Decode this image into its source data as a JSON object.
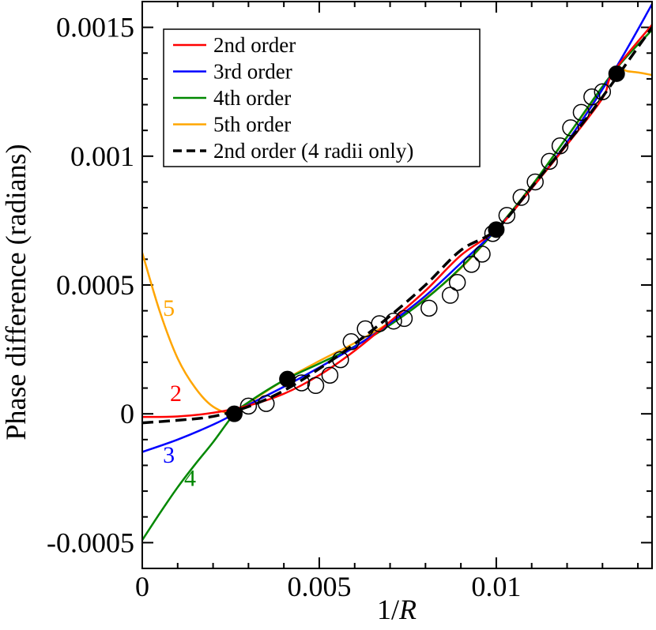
{
  "chart_data": {
    "type": "line",
    "xlabel_plain": "1/",
    "xlabel_italic": "R",
    "ylabel": "Phase difference (radians)",
    "xlim": [
      0,
      0.0144
    ],
    "ylim": [
      -0.0006,
      0.0016
    ],
    "x_ticks": [
      {
        "value": 0,
        "label": "0"
      },
      {
        "value": 0.005,
        "label": "0.005"
      },
      {
        "value": 0.01,
        "label": "0.01"
      }
    ],
    "y_ticks": [
      {
        "value": -0.0005,
        "label": "-0.0005"
      },
      {
        "value": 0,
        "label": "0"
      },
      {
        "value": 0.0005,
        "label": "0.0005"
      },
      {
        "value": 0.001,
        "label": "0.001"
      },
      {
        "value": 0.0015,
        "label": "0.0015"
      }
    ],
    "x_minor_step": 0.001,
    "y_minor_step": 0.0001,
    "grid": false,
    "legend_position": "top-left",
    "series": [
      {
        "name": "2nd order",
        "color": "#ff0000",
        "dash": false,
        "label": "2",
        "label_at": [
          0.00095,
          5e-05
        ],
        "points": [
          [
            0,
            -1.2e-05
          ],
          [
            0.001,
            -1e-05
          ],
          [
            0.002,
            4e-06
          ],
          [
            0.003,
            3.2e-05
          ],
          [
            0.004,
            7.8e-05
          ],
          [
            0.005,
            0.00015
          ],
          [
            0.006,
            0.000245
          ],
          [
            0.007,
            0.000358
          ],
          [
            0.008,
            0.000478
          ],
          [
            0.009,
            0.000615
          ],
          [
            0.01,
            0.000715
          ],
          [
            0.011,
            0.000875
          ],
          [
            0.012,
            0.001045
          ],
          [
            0.013,
            0.001225
          ],
          [
            0.0133,
            0.001325
          ],
          [
            0.0144,
            0.00151
          ]
        ]
      },
      {
        "name": "3rd order",
        "color": "#0000ff",
        "dash": false,
        "label": "3",
        "label_at": [
          0.00075,
          -0.00019
        ],
        "points": [
          [
            0,
            -0.000148
          ],
          [
            0.001,
            -0.0001
          ],
          [
            0.002,
            -4.2e-05
          ],
          [
            0.0026,
            0
          ],
          [
            0.003,
            3.5e-05
          ],
          [
            0.004,
            0.000105
          ],
          [
            0.005,
            0.00018
          ],
          [
            0.006,
            0.00026
          ],
          [
            0.007,
            0.000352
          ],
          [
            0.008,
            0.000458
          ],
          [
            0.009,
            0.000585
          ],
          [
            0.01,
            0.000715
          ],
          [
            0.011,
            0.000875
          ],
          [
            0.012,
            0.001055
          ],
          [
            0.0133,
            0.001325
          ],
          [
            0.0144,
            0.00159
          ]
        ]
      },
      {
        "name": "4th order",
        "color": "#008800",
        "dash": false,
        "label": "4",
        "label_at": [
          0.00135,
          -0.00028
        ],
        "points": [
          [
            0,
            -0.00049
          ],
          [
            0.0005,
            -0.000385
          ],
          [
            0.001,
            -0.000285
          ],
          [
            0.0015,
            -0.000195
          ],
          [
            0.002,
            -0.00011
          ],
          [
            0.0026,
            0
          ],
          [
            0.003,
            4.5e-05
          ],
          [
            0.004,
            0.00013
          ],
          [
            0.005,
            0.000195
          ],
          [
            0.006,
            0.000262
          ],
          [
            0.007,
            0.000345
          ],
          [
            0.008,
            0.000445
          ],
          [
            0.009,
            0.000568
          ],
          [
            0.01,
            0.000715
          ],
          [
            0.011,
            0.000885
          ],
          [
            0.012,
            0.001075
          ],
          [
            0.0133,
            0.001325
          ],
          [
            0.0144,
            0.00149
          ]
        ]
      },
      {
        "name": "5th order",
        "color": "#ffa500",
        "dash": false,
        "label": "5",
        "label_at": [
          0.00075,
          0.00038
        ],
        "points": [
          [
            0,
            0.000625
          ],
          [
            0.0005,
            0.000395
          ],
          [
            0.001,
            0.000215
          ],
          [
            0.0015,
            0.0001
          ],
          [
            0.002,
            2.8e-05
          ],
          [
            0.0026,
            0
          ],
          [
            0.003,
            4.2e-05
          ],
          [
            0.004,
            0.00013
          ],
          [
            0.005,
            0.000205
          ],
          [
            0.006,
            0.000275
          ],
          [
            0.007,
            0.000355
          ],
          [
            0.008,
            0.000448
          ],
          [
            0.009,
            0.000565
          ],
          [
            0.01,
            0.000715
          ],
          [
            0.011,
            0.000885
          ],
          [
            0.012,
            0.001075
          ],
          [
            0.0125,
            0.00117
          ],
          [
            0.013,
            0.001265
          ],
          [
            0.0133,
            0.001325
          ],
          [
            0.0135,
            0.00134
          ],
          [
            0.0137,
            0.00133
          ],
          [
            0.014,
            0.001325
          ],
          [
            0.0144,
            0.001315
          ]
        ]
      },
      {
        "name": "2nd order (4 radii only)",
        "color": "#000000",
        "dash": true,
        "points": [
          [
            0,
            -3.5e-05
          ],
          [
            0.001,
            -2.5e-05
          ],
          [
            0.002,
            -1e-05
          ],
          [
            0.003,
            2.8e-05
          ],
          [
            0.004,
            9e-05
          ],
          [
            0.005,
            0.000175
          ],
          [
            0.006,
            0.000272
          ],
          [
            0.007,
            0.00038
          ],
          [
            0.008,
            0.0005
          ],
          [
            0.009,
            0.000635
          ],
          [
            0.01,
            0.000715
          ],
          [
            0.011,
            0.00088
          ],
          [
            0.012,
            0.00105
          ],
          [
            0.013,
            0.00123
          ],
          [
            0.0144,
            0.0015
          ]
        ]
      }
    ],
    "open_circles": [
      [
        0.003,
        3e-05
      ],
      [
        0.0035,
        4e-05
      ],
      [
        0.0045,
        0.00012
      ],
      [
        0.0049,
        0.00011
      ],
      [
        0.0053,
        0.00015
      ],
      [
        0.0056,
        0.00021
      ],
      [
        0.0059,
        0.00028
      ],
      [
        0.0063,
        0.00033
      ],
      [
        0.0067,
        0.00035
      ],
      [
        0.0071,
        0.00036
      ],
      [
        0.0074,
        0.00037
      ],
      [
        0.0081,
        0.00041
      ],
      [
        0.0087,
        0.00046
      ],
      [
        0.0089,
        0.00051
      ],
      [
        0.0093,
        0.00058
      ],
      [
        0.0096,
        0.00062
      ],
      [
        0.0099,
        0.0007
      ],
      [
        0.0103,
        0.00077
      ],
      [
        0.0107,
        0.00084
      ],
      [
        0.0111,
        0.0009
      ],
      [
        0.0115,
        0.00098
      ],
      [
        0.0118,
        0.00104
      ],
      [
        0.0121,
        0.00111
      ],
      [
        0.0124,
        0.00117
      ],
      [
        0.0127,
        0.00123
      ],
      [
        0.013,
        0.00125
      ]
    ],
    "filled_circles": [
      [
        0.0026,
        0.0
      ],
      [
        0.0041,
        0.000135
      ],
      [
        0.01,
        0.000715
      ],
      [
        0.0134,
        0.00132
      ]
    ]
  }
}
